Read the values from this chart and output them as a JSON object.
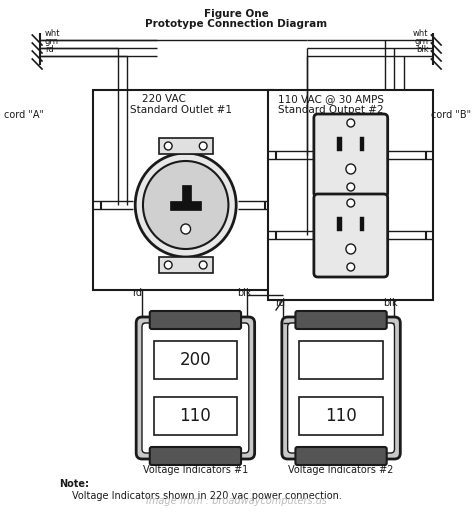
{
  "title_line1": "Figure One",
  "title_line2": "Prototype Connection Diagram",
  "outlet1_label_line1": "220 VAC",
  "outlet1_label_line2": "Standard Outlet #1",
  "outlet2_label_line1": "110 VAC @ 30 AMPS",
  "outlet2_label_line2": "Standard Outpet #2",
  "cord_a": "cord \"A\"",
  "cord_b": "cord \"B\"",
  "wire_labels_left": [
    "wht",
    "grn",
    "rd"
  ],
  "wire_labels_right": [
    "wht",
    "grn",
    "blk"
  ],
  "vi1_label": "Voltage Indicators #1",
  "vi2_label": "Voltage Indicators #2",
  "vi1_top_text": "200",
  "vi1_bot_text": "110",
  "vi2_bot_text": "110",
  "rd_label": "rd",
  "blk_label": "blk",
  "note_line1": "Note:",
  "note_line2": "Voltage Indicators shown in 220 vac power connection.",
  "watermark": "Image from : broadwaycomputers.us",
  "bg_color": "#ffffff",
  "line_color": "#1a1a1a",
  "fig_width": 4.74,
  "fig_height": 5.12
}
